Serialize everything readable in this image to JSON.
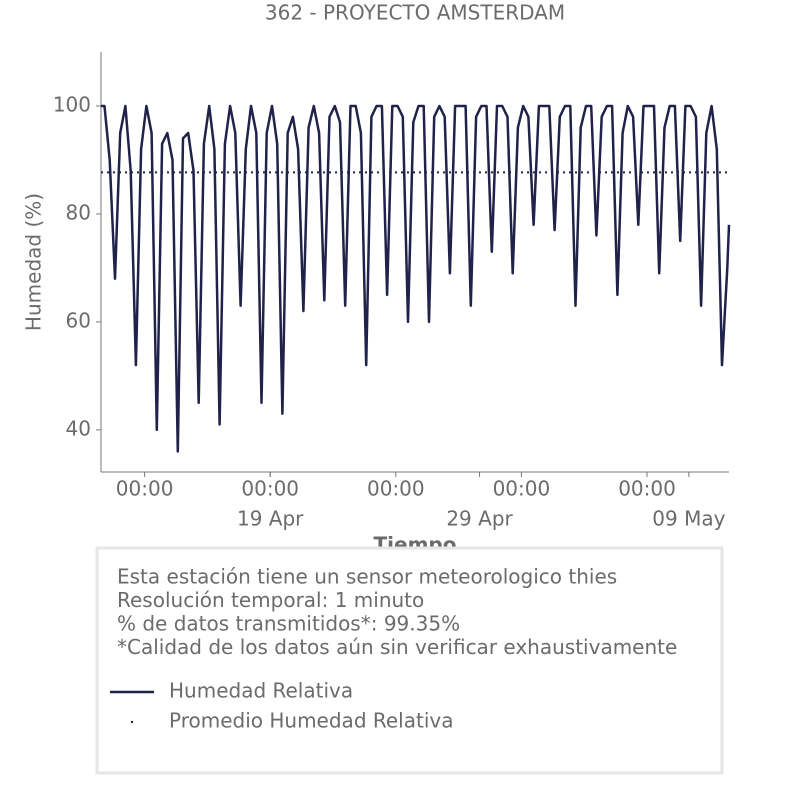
{
  "chart_data": {
    "type": "line",
    "title": "362 - PROYECTO AMSTERDAM",
    "ylabel": "Humedad (%)",
    "xlabel": "Tiempo",
    "xlim": [
      "04-10 22:00",
      "05-10 22:00"
    ],
    "ylim": [
      32.2,
      110
    ],
    "yticks": [
      40,
      60,
      80,
      100
    ],
    "xticks": [
      {
        "value": "04-13 00:00",
        "label": "00:00"
      },
      {
        "value": "04-19 00:00",
        "label": "00:00"
      },
      {
        "value": "04-25 00:00",
        "label": "00:00"
      },
      {
        "value": "05-01 00:00",
        "label": "00:00"
      },
      {
        "value": "05-07 00:00",
        "label": "00:00"
      }
    ],
    "xticks_dates": [
      {
        "value": "04-19 00:00",
        "label": "19 Apr"
      },
      {
        "value": "04-29 00:00",
        "label": "29 Apr"
      },
      {
        "value": "05-09 00:00",
        "label": "09 May"
      }
    ],
    "x": [
      "04-10 22:00",
      "04-11 02:00",
      "04-11 08:00",
      "04-11 14:00",
      "04-11 20:00",
      "04-12 02:00",
      "04-12 08:00",
      "04-12 14:00",
      "04-12 20:00",
      "04-13 02:00",
      "04-13 08:00",
      "04-13 14:00",
      "04-13 20:00",
      "04-14 02:00",
      "04-14 08:00",
      "04-14 14:00",
      "04-14 20:00",
      "04-15 02:00",
      "04-15 08:00",
      "04-15 14:00",
      "04-15 20:00",
      "04-16 02:00",
      "04-16 08:00",
      "04-16 14:00",
      "04-16 20:00",
      "04-17 02:00",
      "04-17 08:00",
      "04-17 14:00",
      "04-17 20:00",
      "04-18 02:00",
      "04-18 08:00",
      "04-18 14:00",
      "04-18 20:00",
      "04-19 02:00",
      "04-19 08:00",
      "04-19 14:00",
      "04-19 20:00",
      "04-20 02:00",
      "04-20 08:00",
      "04-20 14:00",
      "04-20 20:00",
      "04-21 02:00",
      "04-21 08:00",
      "04-21 14:00",
      "04-21 20:00",
      "04-22 02:00",
      "04-22 08:00",
      "04-22 14:00",
      "04-22 20:00",
      "04-23 02:00",
      "04-23 08:00",
      "04-23 14:00",
      "04-23 20:00",
      "04-24 02:00",
      "04-24 08:00",
      "04-24 14:00",
      "04-24 20:00",
      "04-25 02:00",
      "04-25 08:00",
      "04-25 14:00",
      "04-25 20:00",
      "04-26 02:00",
      "04-26 08:00",
      "04-26 14:00",
      "04-26 20:00",
      "04-27 02:00",
      "04-27 08:00",
      "04-27 14:00",
      "04-27 20:00",
      "04-28 02:00",
      "04-28 08:00",
      "04-28 14:00",
      "04-28 20:00",
      "04-29 02:00",
      "04-29 08:00",
      "04-29 14:00",
      "04-29 20:00",
      "04-30 02:00",
      "04-30 08:00",
      "04-30 14:00",
      "04-30 20:00",
      "05-01 02:00",
      "05-01 08:00",
      "05-01 14:00",
      "05-01 20:00",
      "05-02 02:00",
      "05-02 08:00",
      "05-02 14:00",
      "05-02 20:00",
      "05-03 02:00",
      "05-03 08:00",
      "05-03 14:00",
      "05-03 20:00",
      "05-04 02:00",
      "05-04 08:00",
      "05-04 14:00",
      "05-04 20:00",
      "05-05 02:00",
      "05-05 08:00",
      "05-05 14:00",
      "05-05 20:00",
      "05-06 02:00",
      "05-06 08:00",
      "05-06 14:00",
      "05-06 20:00",
      "05-07 02:00",
      "05-07 08:00",
      "05-07 14:00",
      "05-07 20:00",
      "05-08 02:00",
      "05-08 08:00",
      "05-08 14:00",
      "05-08 20:00",
      "05-09 02:00",
      "05-09 08:00",
      "05-09 14:00",
      "05-09 20:00",
      "05-10 02:00",
      "05-10 08:00",
      "05-10 14:00",
      "05-10 20:00",
      "05-10 22:00"
    ],
    "series": [
      {
        "name": "Humedad Relativa",
        "color": "#21224a",
        "values": [
          100,
          100,
          90,
          68,
          95,
          100,
          88,
          52,
          92,
          100,
          95,
          40,
          93,
          95,
          90,
          36,
          94,
          95,
          88,
          45,
          93,
          100,
          92,
          41,
          93,
          100,
          95,
          63,
          92,
          100,
          95,
          45,
          95,
          100,
          93,
          43,
          95,
          98,
          92,
          62,
          96,
          100,
          95,
          64,
          98,
          100,
          97,
          63,
          100,
          100,
          95,
          52,
          98,
          100,
          100,
          65,
          100,
          100,
          98,
          60,
          97,
          100,
          100,
          60,
          98,
          100,
          98,
          69,
          100,
          100,
          100,
          63,
          98,
          100,
          100,
          73,
          100,
          100,
          98,
          69,
          96,
          100,
          98,
          78,
          100,
          100,
          100,
          77,
          98,
          100,
          100,
          63,
          96,
          100,
          100,
          76,
          98,
          100,
          100,
          65,
          95,
          100,
          98,
          78,
          100,
          100,
          100,
          69,
          96,
          100,
          100,
          75,
          100,
          100,
          98,
          63,
          95,
          100,
          92,
          52,
          70,
          78
        ]
      }
    ],
    "mean": {
      "name": "Promedio Humedad Relativa",
      "color": "#21224a",
      "value": 87.7,
      "style": "dotted"
    },
    "info": [
      "Esta estación tiene un sensor meteorologico thies",
      "Resolución temporal: 1 minuto",
      "% de datos transmitidos*: 99.35%",
      "*Calidad de los datos aún sin verificar exhaustivamente"
    ]
  }
}
